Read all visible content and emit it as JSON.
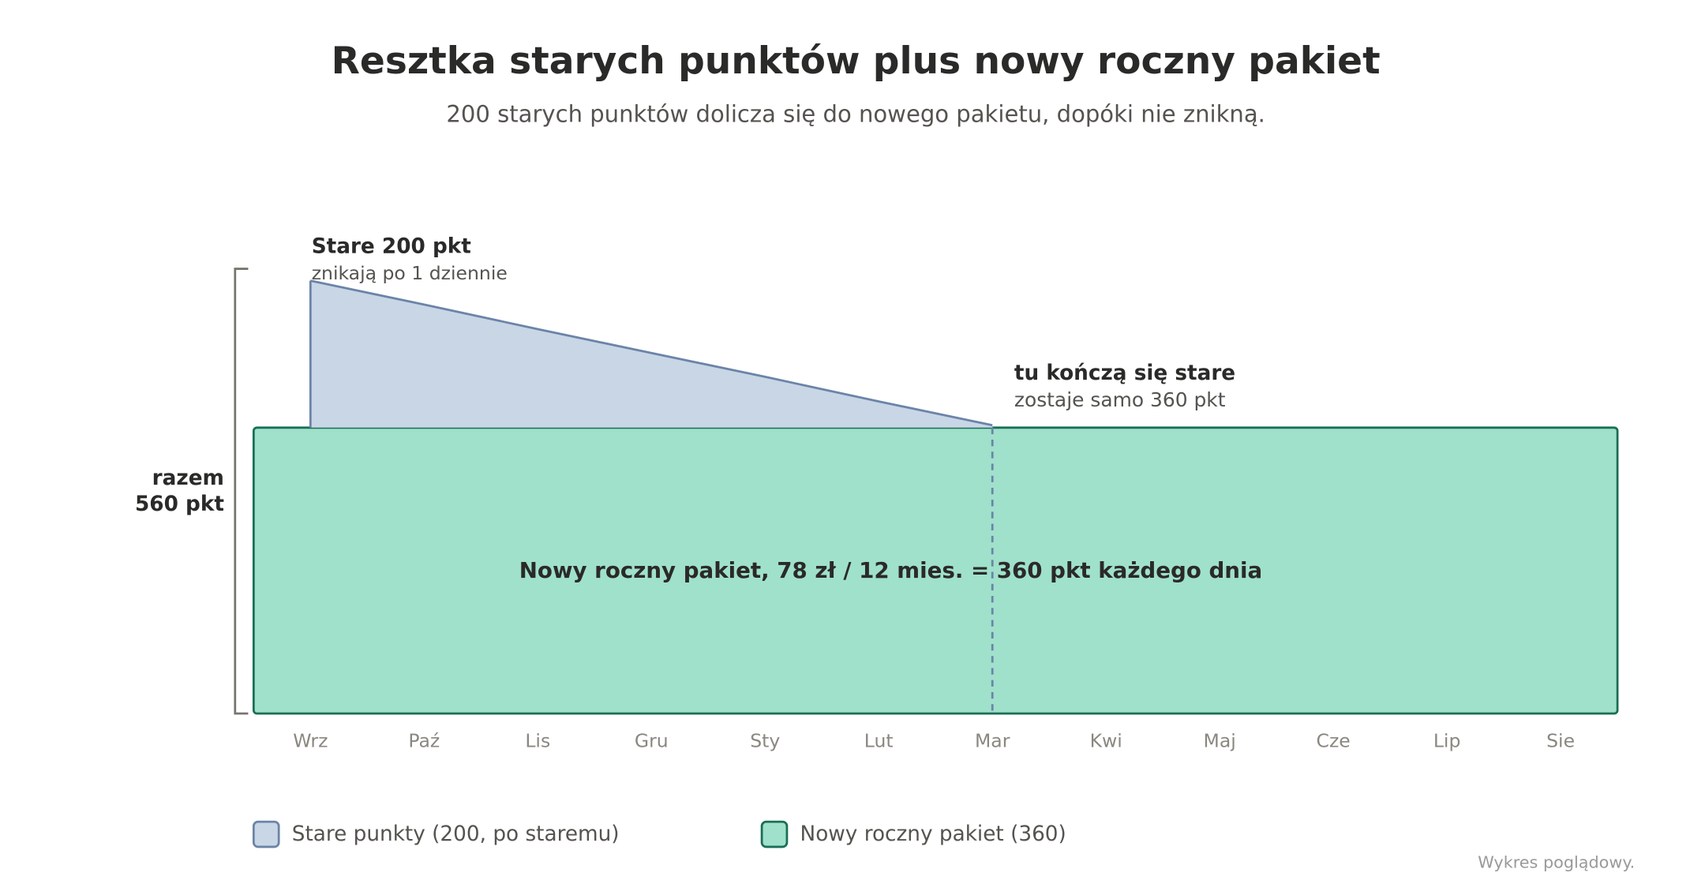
{
  "chart_data": {
    "type": "area",
    "title": "Resztka starych punktów plus nowy roczny pakiet",
    "subtitle": "200 starych punktów dolicza się do nowego pakietu, dopóki nie znikną.",
    "categories": [
      "Wrz",
      "Paź",
      "Lis",
      "Gru",
      "Sty",
      "Lut",
      "Mar",
      "Kwi",
      "Maj",
      "Cze",
      "Lip",
      "Sie"
    ],
    "series": [
      {
        "name": "Stare punkty (200, po staremu)",
        "color": "#c9d6e6",
        "stroke": "#6b84a8",
        "values": [
          185,
          155,
          124,
          94,
          64,
          33,
          3,
          null,
          null,
          null,
          null,
          null
        ]
      },
      {
        "name": "Nowy roczny pakiet (360)",
        "color": "#a0e1cb",
        "stroke": "#1a6e55",
        "values": [
          360,
          360,
          360,
          360,
          360,
          360,
          360,
          360,
          360,
          360,
          360,
          360
        ]
      }
    ],
    "ylim": [
      0,
      560
    ],
    "annotations": {
      "old_title": "Stare 200 pkt",
      "old_sub": "znikają po 1 dziennie",
      "end_title": "tu kończą się stare",
      "end_sub": "zostaje samo 360 pkt",
      "total": [
        "razem",
        "560 pkt"
      ],
      "center": "Nowy roczny pakiet, 78 zł / 12 mies. = 360 pkt każdego dnia"
    },
    "footnote": "Wykres poglądowy."
  }
}
